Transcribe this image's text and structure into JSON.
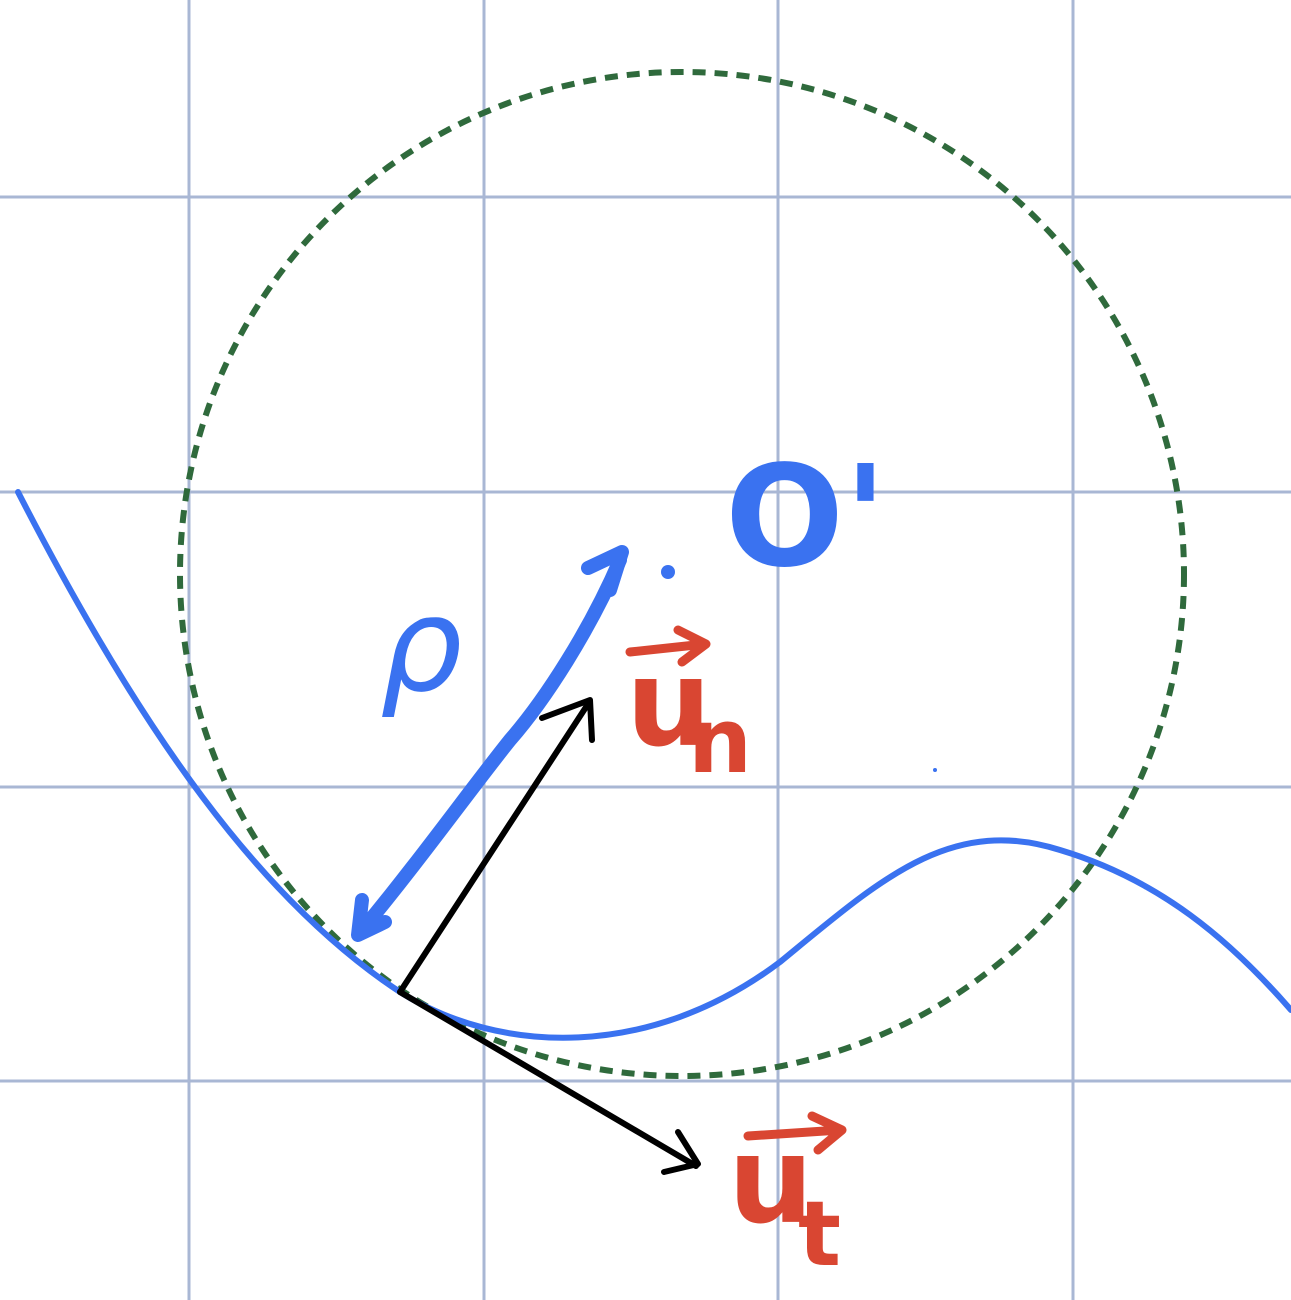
{
  "diagram": {
    "description_free": true,
    "labels": {
      "rho": "ρ",
      "center": "O'",
      "normal_base": "u",
      "normal_sub": "n",
      "tangent_base": "u",
      "tangent_sub": "t"
    },
    "colors": {
      "grid": "#a9b7d4",
      "curve": "#3a72f0",
      "circle": "#2f6a3c",
      "vector": "#000000",
      "vector_label": "#d94632",
      "background": "#ffffff"
    }
  }
}
